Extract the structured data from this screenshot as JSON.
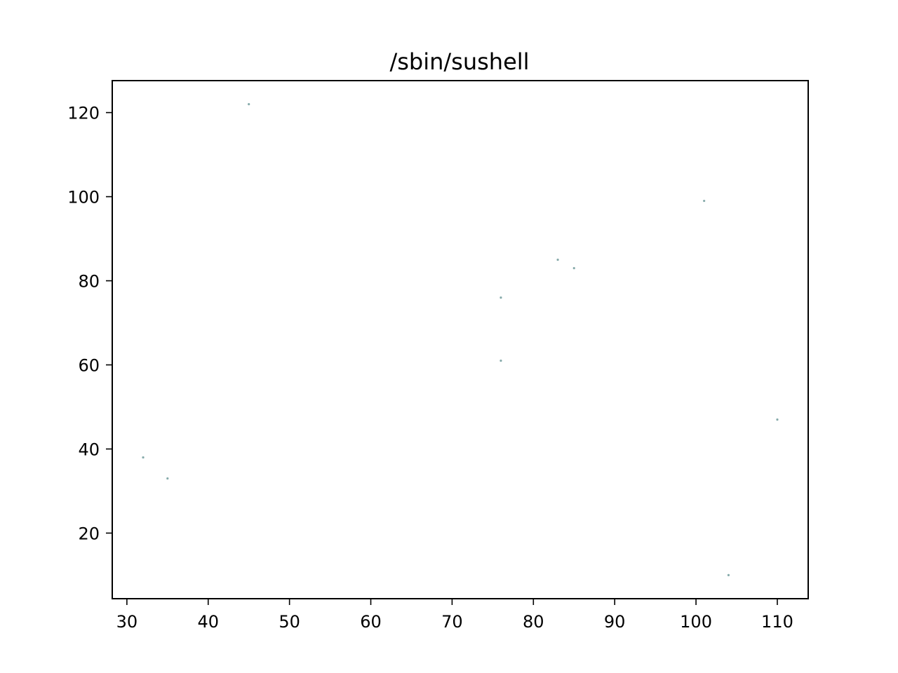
{
  "chart_data": {
    "type": "scatter",
    "title": "/sbin/sushell",
    "xlabel": "",
    "ylabel": "",
    "xlim": [
      28.2,
      113.8
    ],
    "ylim": [
      4.4,
      127.6
    ],
    "xticks": [
      30,
      40,
      50,
      60,
      70,
      80,
      90,
      100,
      110
    ],
    "yticks": [
      20,
      40,
      60,
      80,
      100,
      120
    ],
    "grid": false,
    "legend": "none",
    "marker_color": "#5f8f8f",
    "points": [
      {
        "x": 32,
        "y": 38
      },
      {
        "x": 35,
        "y": 33
      },
      {
        "x": 45,
        "y": 122
      },
      {
        "x": 76,
        "y": 61
      },
      {
        "x": 76,
        "y": 76
      },
      {
        "x": 83,
        "y": 85
      },
      {
        "x": 85,
        "y": 83
      },
      {
        "x": 101,
        "y": 99
      },
      {
        "x": 104,
        "y": 10
      },
      {
        "x": 110,
        "y": 47
      }
    ]
  }
}
